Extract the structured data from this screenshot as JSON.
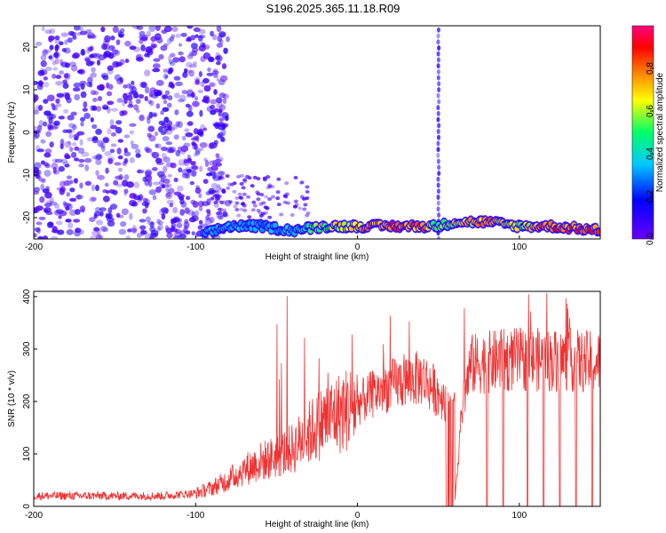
{
  "title": "S196.2025.365.11.18.R09",
  "chart_data": [
    {
      "type": "heatmap",
      "title": "",
      "xlabel": "Height of straight line (km)",
      "ylabel": "Frequency (Hz)",
      "xlim": [
        -200,
        150
      ],
      "ylim": [
        -25,
        25
      ],
      "xticks": [
        -200,
        -100,
        0,
        100
      ],
      "yticks": [
        -20,
        -10,
        0,
        10,
        20
      ],
      "grid": false,
      "colorbar": {
        "label": "Normalized spectral amplitude",
        "range": [
          0,
          1
        ],
        "ticks": [
          0.0,
          0.2,
          0.4,
          0.6,
          0.8
        ],
        "tick_labels": [
          "0.0",
          "0.2",
          "0.4",
          "0.6",
          "0.8"
        ],
        "colormap": [
          "#6a00ff",
          "#0000ff",
          "#00c8ff",
          "#00ff66",
          "#ffff00",
          "#ff8000",
          "#ff0000",
          "#ff0080"
        ]
      },
      "features": {
        "noise_region_x": [
          -200,
          -90
        ],
        "noise_region_amplitude": [
          0.05,
          0.2
        ],
        "dominant_band": {
          "x": [
            -95,
            -80,
            -60,
            -40,
            -20,
            0,
            20,
            40,
            50,
            60,
            80,
            100,
            120,
            150
          ],
          "frequency": [
            -24,
            -22,
            -22,
            -23,
            -22,
            -22,
            -22,
            -22,
            -22,
            -21,
            -21,
            -22,
            -22,
            -23
          ],
          "amplitude": [
            0.3,
            0.35,
            0.3,
            0.35,
            0.6,
            0.7,
            0.9,
            0.85,
            0.5,
            0.6,
            0.8,
            0.6,
            0.85,
            0.9
          ]
        },
        "vertical_stripe_x": 50
      }
    },
    {
      "type": "line",
      "title": "",
      "xlabel": "Height of straight line (km)",
      "ylabel": "SNR (10 * v/v)",
      "xlim": [
        -200,
        150
      ],
      "ylim": [
        0,
        410
      ],
      "xticks": [
        -200,
        -100,
        0,
        100
      ],
      "yticks": [
        0,
        100,
        200,
        300,
        400
      ],
      "grid": false,
      "color": "#ee3333",
      "x": [
        -200,
        -180,
        -160,
        -140,
        -120,
        -100,
        -90,
        -80,
        -70,
        -60,
        -50,
        -40,
        -30,
        -20,
        -10,
        0,
        10,
        20,
        30,
        40,
        50,
        55,
        60,
        65,
        70,
        80,
        90,
        100,
        110,
        120,
        130,
        140,
        150
      ],
      "y": [
        20,
        20,
        20,
        20,
        20,
        25,
        35,
        50,
        70,
        85,
        95,
        110,
        140,
        165,
        180,
        195,
        215,
        230,
        240,
        245,
        215,
        205,
        5,
        200,
        270,
        275,
        278,
        280,
        280,
        278,
        280,
        275,
        275
      ],
      "spikes": {
        "x_range": [
          -80,
          150
        ],
        "max_value": 410
      },
      "dropouts": {
        "x": [
          55,
          58,
          80,
          90,
          105,
          115,
          125,
          135,
          145
        ],
        "value": 0
      }
    }
  ]
}
